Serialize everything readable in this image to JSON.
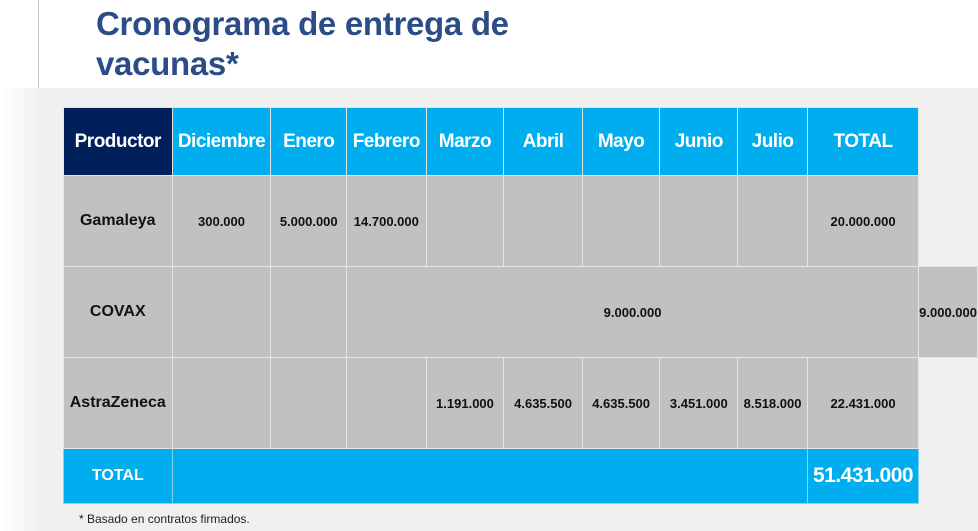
{
  "title": "Cronograma de entrega de vacunas*",
  "table": {
    "headers": [
      "Productor",
      "Diciembre",
      "Enero",
      "Febrero",
      "Marzo",
      "Abril",
      "Mayo",
      "Junio",
      "Julio",
      "TOTAL"
    ],
    "rows": [
      {
        "name": "Gamaleya",
        "dic": "300.000",
        "ene": "5.000.000",
        "feb": "14.700.000",
        "total": "20.000.000"
      },
      {
        "name": "COVAX",
        "feb_jul": "9.000.000",
        "total": "9.000.000"
      },
      {
        "name": "AstraZeneca",
        "mar": "1.191.000",
        "abr": "4.635.500",
        "may": "4.635.500",
        "jun": "3.451.000",
        "jul": "8.518.000",
        "total": "22.431.000"
      }
    ],
    "total_label": "TOTAL",
    "grand_total": "51.431.000"
  },
  "footnote": "* Basado en contratos firmados."
}
